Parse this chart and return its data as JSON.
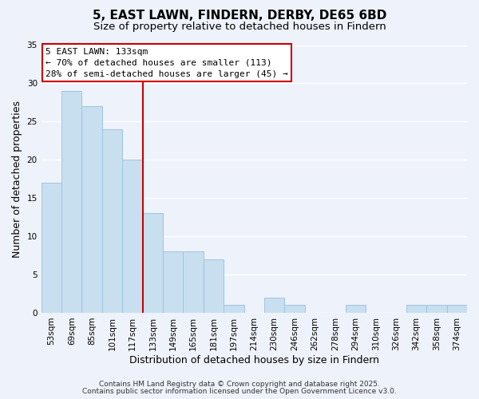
{
  "title": "5, EAST LAWN, FINDERN, DERBY, DE65 6BD",
  "subtitle": "Size of property relative to detached houses in Findern",
  "xlabel": "Distribution of detached houses by size in Findern",
  "ylabel": "Number of detached properties",
  "bar_labels": [
    "53sqm",
    "69sqm",
    "85sqm",
    "101sqm",
    "117sqm",
    "133sqm",
    "149sqm",
    "165sqm",
    "181sqm",
    "197sqm",
    "214sqm",
    "230sqm",
    "246sqm",
    "262sqm",
    "278sqm",
    "294sqm",
    "310sqm",
    "326sqm",
    "342sqm",
    "358sqm",
    "374sqm"
  ],
  "bar_values": [
    17,
    29,
    27,
    24,
    20,
    13,
    8,
    8,
    7,
    1,
    0,
    2,
    1,
    0,
    0,
    1,
    0,
    0,
    1,
    1,
    1
  ],
  "bar_color": "#c8dff0",
  "bar_edge_color": "#a0c4e0",
  "vline_x": 5,
  "vline_color": "#cc0000",
  "ylim": [
    0,
    35
  ],
  "yticks": [
    0,
    5,
    10,
    15,
    20,
    25,
    30,
    35
  ],
  "annotation_title": "5 EAST LAWN: 133sqm",
  "annotation_line1": "← 70% of detached houses are smaller (113)",
  "annotation_line2": "28% of semi-detached houses are larger (45) →",
  "annotation_box_color": "#ffffff",
  "annotation_box_edge": "#cc0000",
  "footer_line1": "Contains HM Land Registry data © Crown copyright and database right 2025.",
  "footer_line2": "Contains public sector information licensed under the Open Government Licence v3.0.",
  "background_color": "#eef2fb",
  "grid_color": "#ffffff",
  "title_fontsize": 11,
  "subtitle_fontsize": 9.5,
  "axis_label_fontsize": 9,
  "tick_fontsize": 7.5,
  "annotation_fontsize": 8,
  "footer_fontsize": 6.5
}
